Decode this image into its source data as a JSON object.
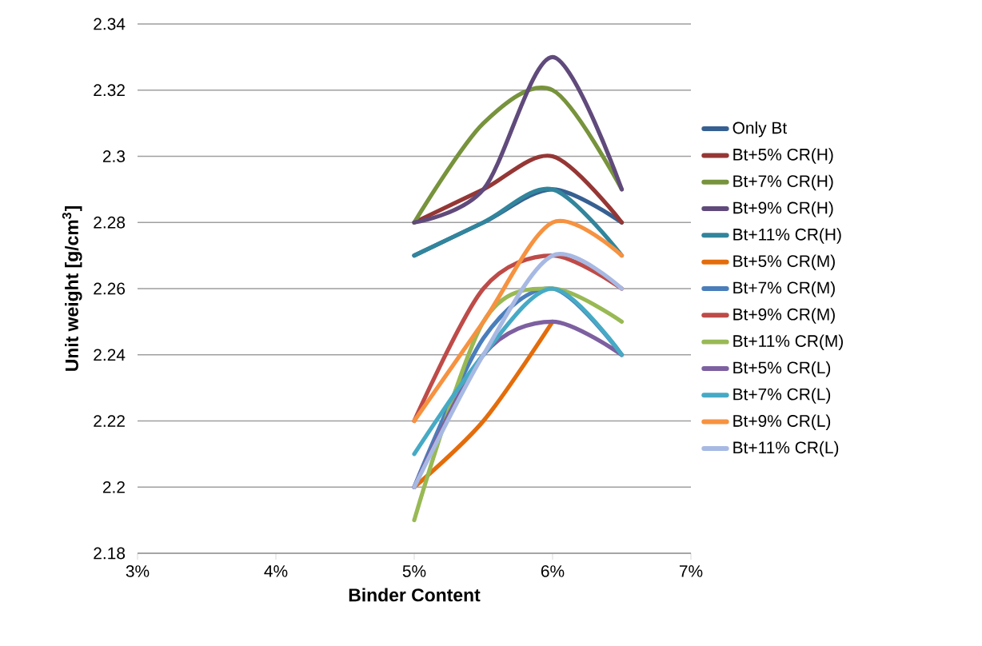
{
  "chart_data": {
    "type": "line",
    "xlabel": "Binder Content",
    "ylabel": "Unit weight [g/cm$^{3}$]",
    "x": [
      5,
      5.5,
      6,
      6.5
    ],
    "xlim": [
      3,
      7
    ],
    "xticks": [
      {
        "value": 3,
        "label": "3%"
      },
      {
        "value": 4,
        "label": "4%"
      },
      {
        "value": 5,
        "label": "5%"
      },
      {
        "value": 6,
        "label": "6%"
      },
      {
        "value": 7,
        "label": "7%"
      }
    ],
    "ylim": [
      2.18,
      2.34
    ],
    "yticks": [
      2.18,
      2.2,
      2.22,
      2.24,
      2.26,
      2.28,
      2.3,
      2.32,
      2.34
    ],
    "grid": "y",
    "legend": "right",
    "series": [
      {
        "name": "Only Bt",
        "color": "#376092",
        "values": [
          2.27,
          2.28,
          2.29,
          2.28
        ]
      },
      {
        "name": "Bt+5% CR(H)",
        "color": "#953735",
        "values": [
          2.28,
          2.29,
          2.3,
          2.28
        ]
      },
      {
        "name": "Bt+7% CR(H)",
        "color": "#77933C",
        "values": [
          2.28,
          2.31,
          2.32,
          2.29
        ]
      },
      {
        "name": "Bt+9% CR(H)",
        "color": "#604A7B",
        "values": [
          2.28,
          2.29,
          2.33,
          2.29
        ]
      },
      {
        "name": "Bt+11% CR(H)",
        "color": "#31859C",
        "values": [
          2.27,
          2.28,
          2.29,
          2.27
        ]
      },
      {
        "name": "Bt+5% CR(M)",
        "color": "#E46C0A",
        "values": [
          2.2,
          2.22,
          2.25,
          null
        ]
      },
      {
        "name": "Bt+7% CR(M)",
        "color": "#4A7EBB",
        "values": [
          2.2,
          2.245,
          2.26,
          2.24
        ]
      },
      {
        "name": "Bt+9% CR(M)",
        "color": "#BE4B48",
        "values": [
          2.22,
          2.26,
          2.27,
          2.26
        ]
      },
      {
        "name": "Bt+11% CR(M)",
        "color": "#98B954",
        "values": [
          2.19,
          2.25,
          2.26,
          2.25
        ]
      },
      {
        "name": "Bt+5% CR(L)",
        "color": "#7D60A0",
        "values": [
          2.2,
          2.24,
          2.25,
          2.24
        ]
      },
      {
        "name": "Bt+7% CR(L)",
        "color": "#46AAC5",
        "values": [
          2.21,
          2.24,
          2.26,
          2.24
        ]
      },
      {
        "name": "Bt+9% CR(L)",
        "color": "#F69240",
        "values": [
          2.22,
          2.25,
          2.28,
          2.27
        ]
      },
      {
        "name": "Bt+11% CR(L)",
        "color": "#A7B9E3",
        "values": [
          2.2,
          2.24,
          2.27,
          2.26
        ]
      }
    ]
  }
}
